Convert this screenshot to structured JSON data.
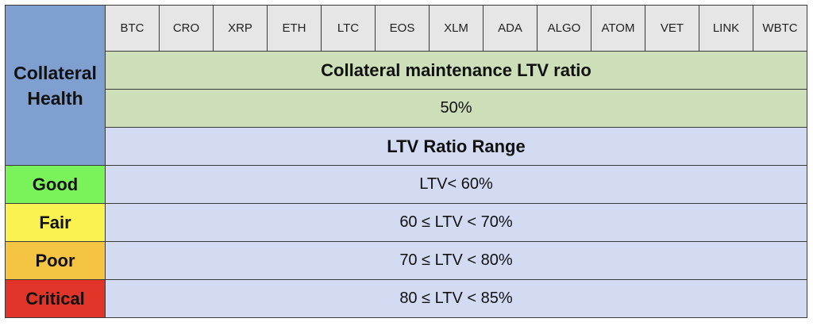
{
  "table": {
    "header_label": "Collateral Health",
    "coins": [
      "BTC",
      "CRO",
      "XRP",
      "ETH",
      "LTC",
      "EOS",
      "XLM",
      "ADA",
      "ALGO",
      "ATOM",
      "VET",
      "LINK",
      "WBTC"
    ],
    "maintenance_title": "Collateral maintenance LTV ratio",
    "maintenance_value": "50%",
    "range_title": "LTV Ratio Range",
    "levels": [
      {
        "label": "Good",
        "range": "LTV< 60%",
        "color": "#7af25a"
      },
      {
        "label": "Fair",
        "range": "60 ≤ LTV < 70%",
        "color": "#f9f251"
      },
      {
        "label": "Poor",
        "range": "70 ≤ LTV < 80%",
        "color": "#f5c443"
      },
      {
        "label": "Critical",
        "range": "80 ≤ LTV < 85%",
        "color": "#e2352a"
      }
    ]
  }
}
